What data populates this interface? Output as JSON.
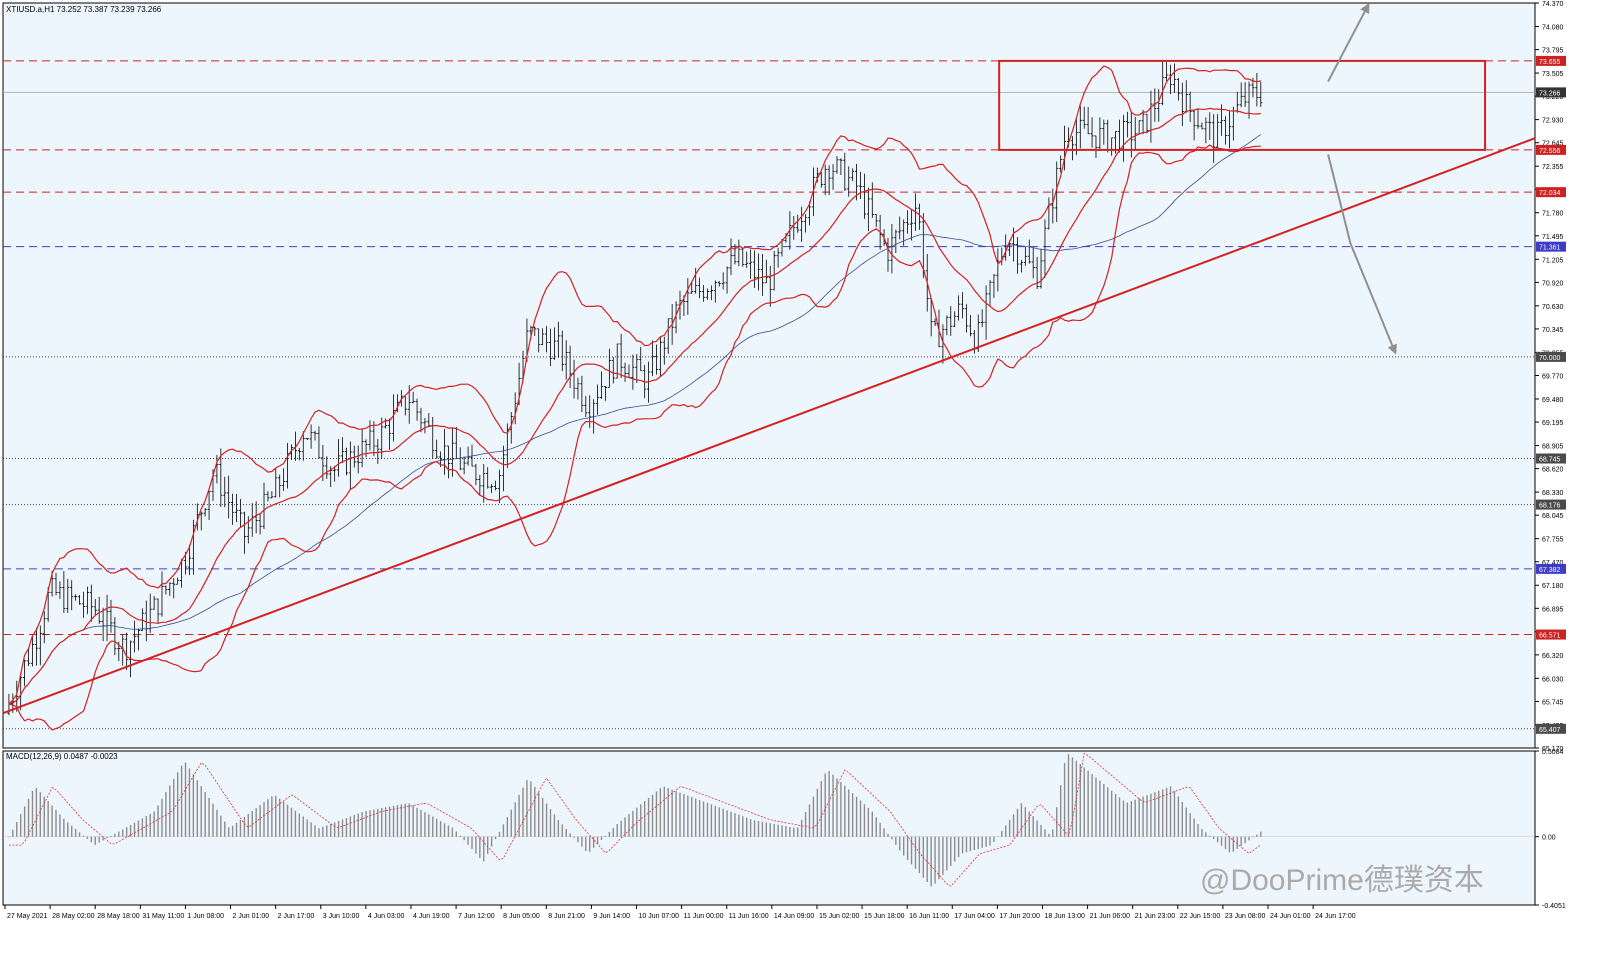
{
  "header": {
    "symbol_line": "XTIUSD.a,H1  73.252 73.387 73.239 73.266",
    "macd_line": "MACD(12,26,9) 0.0487 -0.0023"
  },
  "watermark": "@DooPrime德璞资本",
  "colors": {
    "background": "#eef6fd",
    "candle": "#000000",
    "bollinger": "#d42020",
    "ma": "#3a4a90",
    "macd_hist": "#8c8c8c",
    "macd_signal": "#e03030",
    "arrow": "#909090",
    "price_tag_red": "#cc2222",
    "price_tag_blue": "#3c3cc8",
    "price_tag_dark": "#4a4a4a"
  },
  "price_axis": {
    "ticks": [
      "74.370",
      "74.080",
      "73.795",
      "73.505",
      "73.220",
      "72.930",
      "72.645",
      "72.355",
      "72.070",
      "71.780",
      "71.495",
      "71.205",
      "70.920",
      "70.630",
      "70.345",
      "70.055",
      "69.770",
      "69.480",
      "69.195",
      "68.905",
      "68.620",
      "68.330",
      "68.045",
      "67.755",
      "67.470",
      "67.180",
      "66.895",
      "66.605",
      "66.320",
      "66.030",
      "65.745",
      "65.455",
      "65.170"
    ],
    "current_tag": "73.266"
  },
  "levels": [
    {
      "price": "73.655",
      "style": "dash",
      "color": "red"
    },
    {
      "price": "72.556",
      "style": "dash",
      "color": "red"
    },
    {
      "price": "72.034",
      "style": "dash",
      "color": "red"
    },
    {
      "price": "71.361",
      "style": "dash",
      "color": "blue"
    },
    {
      "price": "70.000",
      "style": "dot",
      "color": "dark"
    },
    {
      "price": "68.745",
      "style": "dot",
      "color": "dark"
    },
    {
      "price": "68.176",
      "style": "dot",
      "color": "dark"
    },
    {
      "price": "67.382",
      "style": "dash",
      "color": "blue"
    },
    {
      "price": "66.571",
      "style": "dash",
      "color": "red"
    },
    {
      "price": "65.407",
      "style": "dot",
      "color": "dark"
    }
  ],
  "macd_axis": {
    "ticks": [
      "0.5084",
      "0.00",
      "-0.4051"
    ]
  },
  "time_axis": {
    "labels": [
      "27 May 2021",
      "28 May 02:00",
      "28 May 18:00",
      "31 May 11:00",
      "1 Jun 08:00",
      "2 Jun 01:00",
      "2 Jun 17:00",
      "3 Jun 10:00",
      "4 Jun 03:00",
      "4 Jun 19:00",
      "7 Jun 12:00",
      "8 Jun 05:00",
      "8 Jun 21:00",
      "9 Jun 14:00",
      "10 Jun 07:00",
      "11 Jun 00:00",
      "11 Jun 16:00",
      "14 Jun 09:00",
      "15 Jun 02:00",
      "15 Jun 18:00",
      "16 Jun 11:00",
      "17 Jun 04:00",
      "17 Jun 20:00",
      "18 Jun 13:00",
      "21 Jun 06:00",
      "21 Jun 23:00",
      "22 Jun 15:00",
      "23 Jun 08:00",
      "24 Jun 01:00",
      "24 Jun 17:00"
    ]
  },
  "chart_data": {
    "type": "candlestick",
    "symbol": "XTIUSD.a",
    "timeframe": "H1",
    "ylim": [
      65.17,
      74.37
    ],
    "macd_ylim": [
      -0.4051,
      0.5084
    ],
    "price_path": [
      [
        0,
        65.6
      ],
      [
        0.02,
        66.5
      ],
      [
        0.03,
        67.1
      ],
      [
        0.06,
        66.9
      ],
      [
        0.08,
        66.4
      ],
      [
        0.1,
        66.9
      ],
      [
        0.12,
        67.5
      ],
      [
        0.14,
        68.6
      ],
      [
        0.16,
        67.8
      ],
      [
        0.18,
        68.3
      ],
      [
        0.2,
        69.1
      ],
      [
        0.22,
        68.6
      ],
      [
        0.25,
        69.0
      ],
      [
        0.27,
        69.5
      ],
      [
        0.29,
        68.9
      ],
      [
        0.31,
        68.6
      ],
      [
        0.33,
        68.5
      ],
      [
        0.35,
        70.3
      ],
      [
        0.37,
        70.1
      ],
      [
        0.39,
        69.4
      ],
      [
        0.41,
        70.0
      ],
      [
        0.43,
        69.7
      ],
      [
        0.45,
        70.6
      ],
      [
        0.47,
        70.9
      ],
      [
        0.49,
        71.2
      ],
      [
        0.51,
        70.9
      ],
      [
        0.53,
        71.7
      ],
      [
        0.55,
        72.4
      ],
      [
        0.57,
        72.1
      ],
      [
        0.59,
        71.3
      ],
      [
        0.61,
        71.9
      ],
      [
        0.62,
        70.2
      ],
      [
        0.64,
        70.6
      ],
      [
        0.65,
        70.2
      ],
      [
        0.67,
        71.5
      ],
      [
        0.69,
        71.0
      ],
      [
        0.71,
        72.8
      ],
      [
        0.74,
        72.7
      ],
      [
        0.76,
        72.8
      ],
      [
        0.78,
        73.5
      ],
      [
        0.79,
        73.1
      ],
      [
        0.81,
        72.7
      ],
      [
        0.83,
        73.2
      ],
      [
        0.84,
        73.266
      ]
    ],
    "macd": [
      [
        0,
        -0.05
      ],
      [
        0.02,
        0.3
      ],
      [
        0.04,
        0.1
      ],
      [
        0.06,
        -0.05
      ],
      [
        0.1,
        0.15
      ],
      [
        0.12,
        0.45
      ],
      [
        0.15,
        0.05
      ],
      [
        0.18,
        0.25
      ],
      [
        0.21,
        0.05
      ],
      [
        0.24,
        0.15
      ],
      [
        0.27,
        0.2
      ],
      [
        0.3,
        0.05
      ],
      [
        0.32,
        -0.15
      ],
      [
        0.35,
        0.35
      ],
      [
        0.37,
        0.1
      ],
      [
        0.39,
        -0.1
      ],
      [
        0.41,
        0.08
      ],
      [
        0.44,
        0.3
      ],
      [
        0.47,
        0.2
      ],
      [
        0.5,
        0.1
      ],
      [
        0.53,
        0.05
      ],
      [
        0.55,
        0.4
      ],
      [
        0.58,
        0.15
      ],
      [
        0.6,
        -0.1
      ],
      [
        0.62,
        -0.3
      ],
      [
        0.64,
        -0.1
      ],
      [
        0.66,
        -0.05
      ],
      [
        0.68,
        0.2
      ],
      [
        0.7,
        0.0
      ],
      [
        0.71,
        0.5
      ],
      [
        0.73,
        0.35
      ],
      [
        0.75,
        0.2
      ],
      [
        0.78,
        0.3
      ],
      [
        0.8,
        0.05
      ],
      [
        0.82,
        -0.1
      ],
      [
        0.84,
        0.03
      ]
    ]
  }
}
